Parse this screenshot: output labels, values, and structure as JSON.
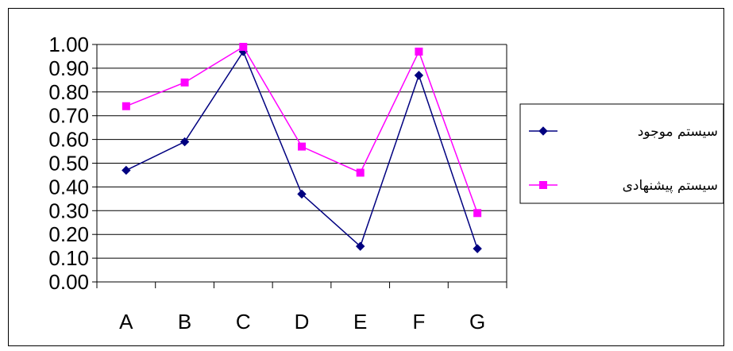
{
  "chart_data": {
    "type": "line",
    "categories": [
      "A",
      "B",
      "C",
      "D",
      "E",
      "F",
      "G"
    ],
    "series": [
      {
        "name": "سیستم موجود",
        "values": [
          0.47,
          0.59,
          0.97,
          0.37,
          0.15,
          0.87,
          0.14
        ],
        "color": "#000080",
        "marker": "diamond"
      },
      {
        "name": "سیستم پیشنهادی",
        "values": [
          0.74,
          0.84,
          0.99,
          0.57,
          0.46,
          0.97,
          0.29
        ],
        "color": "#FF00FF",
        "marker": "square"
      }
    ],
    "y_tick_labels": [
      "0.00",
      "0.10",
      "0.20",
      "0.30",
      "0.40",
      "0.50",
      "0.60",
      "0.70",
      "0.80",
      "0.90",
      "1.00"
    ],
    "ylim": [
      0,
      1
    ],
    "grid": "horizontal",
    "legend_position": "right"
  }
}
